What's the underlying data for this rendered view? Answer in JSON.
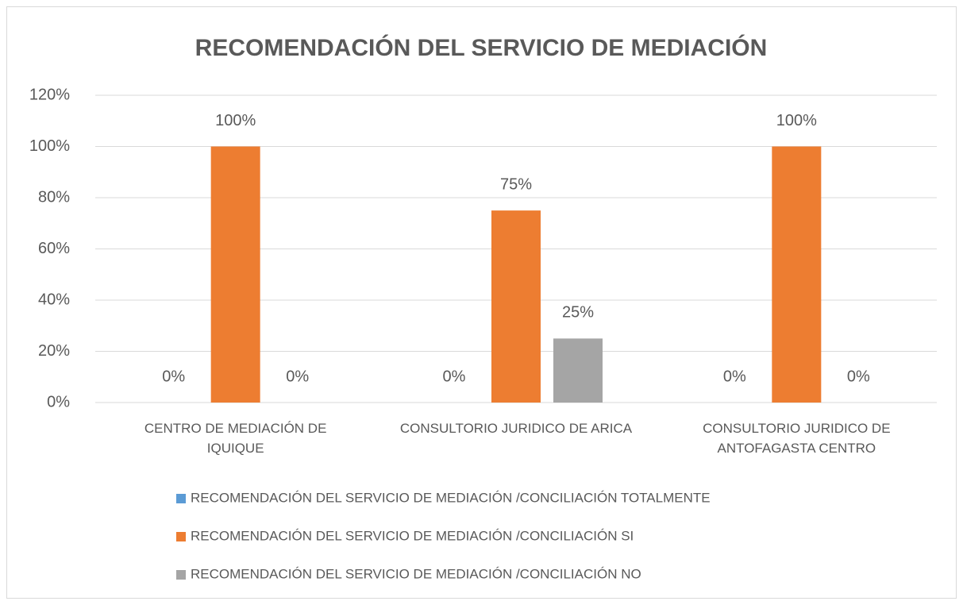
{
  "chart_data": {
    "type": "bar",
    "title": "RECOMENDACIÓN DEL SERVICIO DE MEDIACIÓN",
    "categories": [
      "CENTRO DE MEDIACIÓN DE IQUIQUE",
      "CONSULTORIO JURIDICO DE ARICA",
      "CONSULTORIO JURIDICO DE ANTOFAGASTA CENTRO"
    ],
    "series": [
      {
        "name": "RECOMENDACIÓN DEL SERVICIO DE MEDIACIÓN /CONCILIACIÓN TOTALMENTE",
        "color": "#5b9bd5",
        "values": [
          0,
          0,
          0
        ],
        "value_labels": [
          "0%",
          "0%",
          "0%"
        ]
      },
      {
        "name": "RECOMENDACIÓN DEL SERVICIO DE MEDIACIÓN /CONCILIACIÓN SI",
        "color": "#ed7d31",
        "values": [
          100,
          75,
          100
        ],
        "value_labels": [
          "100%",
          "75%",
          "100%"
        ]
      },
      {
        "name": "RECOMENDACIÓN DEL SERVICIO DE MEDIACIÓN /CONCILIACIÓN NO",
        "color": "#a5a5a5",
        "values": [
          0,
          25,
          0
        ],
        "value_labels": [
          "0%",
          "25%",
          "0%"
        ]
      }
    ],
    "ylim": [
      0,
      120
    ],
    "yticks": [
      {
        "value": 0,
        "label": "0%"
      },
      {
        "value": 20,
        "label": "20%"
      },
      {
        "value": 40,
        "label": "40%"
      },
      {
        "value": 60,
        "label": "60%"
      },
      {
        "value": 80,
        "label": "80%"
      },
      {
        "value": 100,
        "label": "100%"
      },
      {
        "value": 120,
        "label": "120%"
      }
    ],
    "grid": true,
    "legend": "bottom"
  }
}
